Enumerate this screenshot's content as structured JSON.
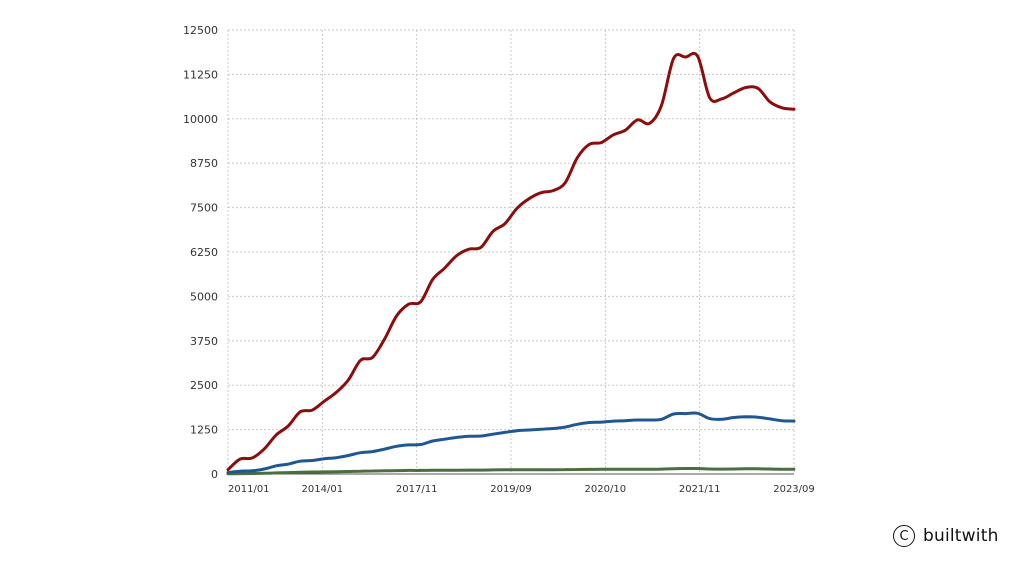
{
  "chart_data": {
    "type": "line",
    "yticks": [
      0,
      1250,
      2500,
      3750,
      5000,
      6250,
      7500,
      8750,
      10000,
      11250,
      12500
    ],
    "ylim": [
      0,
      12500
    ],
    "xticks": [
      "2011/01",
      "2014/01",
      "2017/11",
      "2019/09",
      "2020/10",
      "2021/11",
      "2023/09"
    ],
    "grid": true,
    "series": [
      {
        "color": "#8b0e0e",
        "values": [
          120,
          420,
          450,
          700,
          1100,
          1350,
          1750,
          1800,
          2050,
          2300,
          2650,
          3200,
          3280,
          3800,
          4450,
          4780,
          4850,
          5480,
          5800,
          6150,
          6330,
          6380,
          6830,
          7050,
          7480,
          7750,
          7920,
          7980,
          8200,
          8900,
          9280,
          9330,
          9550,
          9680,
          9970,
          9870,
          10380,
          11700,
          11740,
          11760,
          10590,
          10560,
          10730,
          10880,
          10860,
          10480,
          10310,
          10270
        ]
      },
      {
        "color": "#1f5792",
        "values": [
          40,
          80,
          90,
          140,
          230,
          280,
          360,
          380,
          430,
          460,
          520,
          600,
          630,
          700,
          780,
          820,
          830,
          930,
          980,
          1030,
          1060,
          1070,
          1120,
          1170,
          1220,
          1240,
          1260,
          1280,
          1320,
          1400,
          1450,
          1460,
          1490,
          1500,
          1520,
          1520,
          1540,
          1690,
          1700,
          1710,
          1560,
          1540,
          1590,
          1610,
          1600,
          1550,
          1500,
          1490
        ]
      },
      {
        "color": "#4a6e3e",
        "values": [
          5,
          10,
          15,
          20,
          30,
          40,
          50,
          55,
          60,
          65,
          70,
          80,
          85,
          90,
          95,
          100,
          100,
          105,
          105,
          108,
          110,
          110,
          115,
          118,
          120,
          120,
          120,
          122,
          125,
          128,
          130,
          132,
          132,
          133,
          135,
          135,
          137,
          150,
          155,
          155,
          140,
          138,
          142,
          145,
          145,
          140,
          135,
          135
        ]
      }
    ]
  },
  "watermark": {
    "icon": "copyright-icon",
    "symbol": "C",
    "text": "builtwith"
  }
}
